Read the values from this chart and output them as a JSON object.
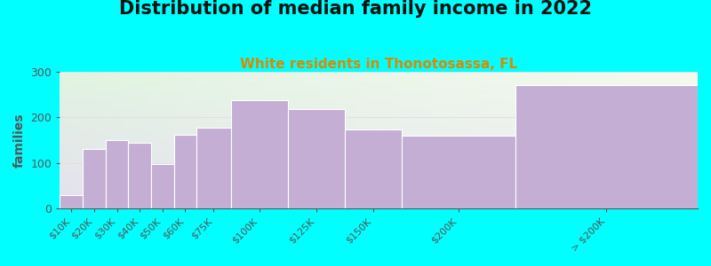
{
  "title": "Distribution of median family income in 2022",
  "subtitle": "White residents in Thonotosassa, FL",
  "ylabel": "families",
  "categories": [
    "$10K",
    "$20K",
    "$30K",
    "$40K",
    "$50K",
    "$60K",
    "$75K",
    "$100K",
    "$125K",
    "$150K",
    "$200K",
    "> $200K"
  ],
  "values": [
    30,
    130,
    150,
    145,
    97,
    162,
    178,
    238,
    218,
    173,
    160,
    272
  ],
  "bin_lefts": [
    0,
    10,
    20,
    30,
    40,
    50,
    60,
    75,
    100,
    125,
    150,
    200
  ],
  "bin_widths": [
    10,
    10,
    10,
    10,
    10,
    10,
    15,
    25,
    25,
    25,
    50,
    80
  ],
  "bar_color": "#c4aed4",
  "bar_edgecolor": "#ffffff",
  "background_outer": "#00ffff",
  "background_plot_topleft": "#ddeedd",
  "background_plot_topright": "#eef8ee",
  "background_plot_bottom": "#e8daf0",
  "ylim": [
    0,
    300
  ],
  "xlim": [
    0,
    280
  ],
  "title_fontsize": 15,
  "subtitle_fontsize": 11,
  "subtitle_color": "#dd8800",
  "ylabel_fontsize": 10,
  "tick_color": "#555555",
  "yticks": [
    0,
    100,
    200,
    300
  ],
  "grid_color": "#e0e0e0",
  "tick_label_positions": [
    5,
    15,
    25,
    35,
    45,
    55,
    67.5,
    87.5,
    112.5,
    137.5,
    175,
    240
  ],
  "tick_label_fontsize": 8
}
